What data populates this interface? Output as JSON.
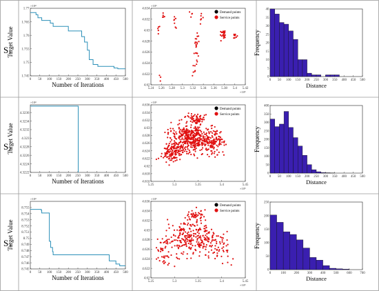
{
  "rows": [
    {
      "label": "S",
      "sub": "1"
    },
    {
      "label": "S",
      "sub": "2"
    },
    {
      "label": "S",
      "sub": "3"
    }
  ],
  "colors": {
    "line": "#2a8fb8",
    "bar": "#3a1fb0",
    "dot": "#e01010",
    "legend_black": "#000000"
  },
  "legend": [
    "Demand points",
    "Service points"
  ],
  "chart_data": [
    {
      "id": "s1-iter",
      "type": "line",
      "xlabel": "Number of Iterations",
      "ylabel": "Target Value",
      "xlim": [
        0,
        500
      ],
      "ylim": [
        1.745,
        1.77
      ],
      "y_exponent": "×10⁴",
      "xticks": [
        "0",
        "50",
        "100",
        "150",
        "200",
        "250",
        "300",
        "350",
        "400",
        "450",
        "500"
      ],
      "yticks": [
        "1.745",
        "1.75",
        "1.755",
        "1.76",
        "1.765",
        "1.77"
      ],
      "x": [
        0,
        10,
        30,
        30,
        40,
        40,
        60,
        60,
        105,
        105,
        120,
        120,
        200,
        200,
        270,
        270,
        285,
        285,
        300,
        300,
        310,
        310,
        330,
        330,
        355,
        355,
        440,
        440,
        460,
        460,
        500
      ],
      "y": [
        1.7684,
        1.7684,
        1.7684,
        1.7676,
        1.7676,
        1.7665,
        1.7665,
        1.7655,
        1.7655,
        1.7645,
        1.7645,
        1.7633,
        1.7633,
        1.7616,
        1.7616,
        1.7595,
        1.7595,
        1.7575,
        1.7575,
        1.7545,
        1.7545,
        1.751,
        1.751,
        1.7492,
        1.7492,
        1.7485,
        1.7485,
        1.7479,
        1.7479,
        1.7476,
        1.7476
      ]
    },
    {
      "id": "s1-map",
      "type": "scatter",
      "xlim": [
        5.238,
        5.425
      ],
      "ylim": [
        4.6192,
        4.6345
      ],
      "x_exponent": "×10⁵",
      "y_exponent": "×10⁶",
      "xticks": [
        "5.24",
        "5.26",
        "5.28",
        "5.3",
        "5.32",
        "5.34",
        "5.36",
        "5.38",
        "5.4",
        "5.42"
      ],
      "yticks": [
        "4.62",
        "4.622",
        "4.624",
        "4.626",
        "4.628",
        "4.63",
        "4.632",
        "4.634"
      ],
      "clusters": [
        [
          5.255,
          4.6305,
          5,
          0.006,
          0.002
        ],
        [
          5.262,
          4.6325,
          5,
          0.005,
          0.0015
        ],
        [
          5.288,
          4.6322,
          7,
          0.006,
          0.0015
        ],
        [
          5.318,
          4.6335,
          4,
          0.004,
          0.001
        ],
        [
          5.338,
          4.6325,
          6,
          0.004,
          0.0015
        ],
        [
          5.328,
          4.6265,
          22,
          0.006,
          0.0035
        ],
        [
          5.322,
          4.6225,
          6,
          0.004,
          0.0015
        ],
        [
          5.382,
          4.6292,
          24,
          0.006,
          0.0012
        ],
        [
          5.405,
          4.6288,
          8,
          0.004,
          0.001
        ],
        [
          5.255,
          4.6208,
          3,
          0.003,
          0.001
        ]
      ]
    },
    {
      "id": "s1-hist",
      "type": "bar",
      "xlabel": "Distance",
      "ylabel": "Frequency",
      "xlim": [
        0,
        500
      ],
      "ylim": [
        0,
        40
      ],
      "xticks": [
        "0",
        "50",
        "100",
        "150",
        "200",
        "250",
        "300",
        "350",
        "400",
        "450",
        "500"
      ],
      "yticks": [
        "0",
        "5",
        "10",
        "15",
        "20",
        "25",
        "30",
        "35",
        "40"
      ],
      "bin_width": 25,
      "values": [
        40,
        37,
        32,
        31,
        27,
        22,
        10,
        10,
        2,
        1,
        1,
        0,
        1,
        1,
        1,
        0,
        0,
        0,
        0,
        0
      ]
    },
    {
      "id": "s2-iter",
      "type": "line",
      "xlabel": "Number of Iterations",
      "ylabel": "Target Value",
      "xlim": [
        0,
        500
      ],
      "ylim": [
        4.3222,
        4.32378
      ],
      "y_exponent": "×10⁴",
      "xticks": [
        "0",
        "50",
        "100",
        "150",
        "200",
        "250",
        "300",
        "350",
        "400",
        "450",
        "500"
      ],
      "yticks": [
        "4.3222",
        "4.3224",
        "4.3226",
        "4.3228",
        "4.323",
        "4.3232",
        "4.3234",
        "4.3236"
      ],
      "x": [
        0,
        252,
        252
      ],
      "y": [
        4.32375,
        4.32375,
        4.3222
      ]
    },
    {
      "id": "s2-map",
      "type": "scatter",
      "xlim": [
        5.225,
        5.47
      ],
      "ylim": [
        4.6158,
        4.6375
      ],
      "x_exponent": "×10⁵",
      "y_exponent": "×10⁶",
      "xticks": [
        "5.25",
        "5.3",
        "5.35",
        "5.4",
        "5.45"
      ],
      "yticks": [
        "4.616",
        "4.618",
        "4.62",
        "4.622",
        "4.624",
        "4.626",
        "4.628",
        "4.63",
        "4.632",
        "4.634",
        "4.636"
      ],
      "clusters": [
        [
          5.33,
          4.628,
          420,
          0.055,
          0.0045
        ],
        [
          5.28,
          4.624,
          120,
          0.03,
          0.003
        ],
        [
          5.39,
          4.627,
          120,
          0.03,
          0.0035
        ],
        [
          5.34,
          4.6335,
          60,
          0.03,
          0.0015
        ]
      ]
    },
    {
      "id": "s2-hist",
      "type": "bar",
      "xlabel": "Distance",
      "ylabel": "Frequency",
      "xlim": [
        0,
        500
      ],
      "ylim": [
        0,
        400
      ],
      "xticks": [
        "0",
        "50",
        "100",
        "150",
        "200",
        "250",
        "300",
        "350",
        "400",
        "450",
        "500"
      ],
      "yticks": [
        "0",
        "50",
        "100",
        "150",
        "200",
        "250",
        "300",
        "350",
        "400"
      ],
      "bin_width": 25,
      "values": [
        320,
        275,
        290,
        365,
        270,
        210,
        160,
        105,
        50,
        20,
        8,
        3,
        2,
        1,
        0,
        0,
        0,
        0,
        0,
        0
      ]
    },
    {
      "id": "s3-iter",
      "type": "line",
      "xlabel": "Number of Iterations",
      "ylabel": "Target Value",
      "xlim": [
        0,
        500
      ],
      "ylim": [
        8.745,
        8.756
      ],
      "y_exponent": "×10⁴",
      "xticks": [
        "0",
        "50",
        "100",
        "150",
        "200",
        "250",
        "300",
        "350",
        "400",
        "450",
        "500"
      ],
      "yticks": [
        "8.745",
        "8.746",
        "8.747",
        "8.748",
        "8.749",
        "8.75",
        "8.751",
        "8.752",
        "8.753",
        "8.754",
        "8.755"
      ],
      "x": [
        0,
        58,
        58,
        60,
        60,
        100,
        100,
        107,
        107,
        117,
        117,
        120,
        120,
        415,
        415,
        450,
        450,
        470,
        470,
        500
      ],
      "y": [
        8.7547,
        8.7547,
        8.7545,
        8.7545,
        8.7541,
        8.7541,
        8.7495,
        8.7495,
        8.7485,
        8.7485,
        8.7478,
        8.7478,
        8.7473,
        8.7473,
        8.7463,
        8.7463,
        8.7458,
        8.7458,
        8.7455,
        8.7455
      ]
    },
    {
      "id": "s3-map",
      "type": "scatter",
      "xlim": [
        5.225,
        5.47
      ],
      "ylim": [
        4.6185,
        4.6365
      ],
      "x_exponent": "×10⁵",
      "y_exponent": "×10⁶",
      "xticks": [
        "5.25",
        "5.3",
        "5.35",
        "5.4",
        "5.45"
      ],
      "yticks": [
        "4.62",
        "4.622",
        "4.624",
        "4.626",
        "4.628",
        "4.63",
        "4.632",
        "4.634",
        "4.636"
      ],
      "clusters": [
        [
          5.33,
          4.628,
          250,
          0.06,
          0.0045
        ],
        [
          5.26,
          4.625,
          50,
          0.02,
          0.004
        ],
        [
          5.4,
          4.626,
          60,
          0.035,
          0.004
        ],
        [
          5.34,
          4.6335,
          40,
          0.03,
          0.0015
        ]
      ]
    },
    {
      "id": "s3-hist",
      "type": "bar",
      "xlabel": "Distance",
      "ylabel": "Frequency",
      "xlim": [
        0,
        700
      ],
      "ylim": [
        0,
        250
      ],
      "xticks": [
        "0",
        "100",
        "200",
        "300",
        "400",
        "500",
        "600",
        "700"
      ],
      "yticks": [
        "0",
        "50",
        "100",
        "150",
        "200",
        "250"
      ],
      "bin_width": 50,
      "values": [
        202,
        175,
        140,
        130,
        110,
        80,
        45,
        35,
        15,
        5,
        3,
        2,
        0,
        0
      ]
    }
  ]
}
